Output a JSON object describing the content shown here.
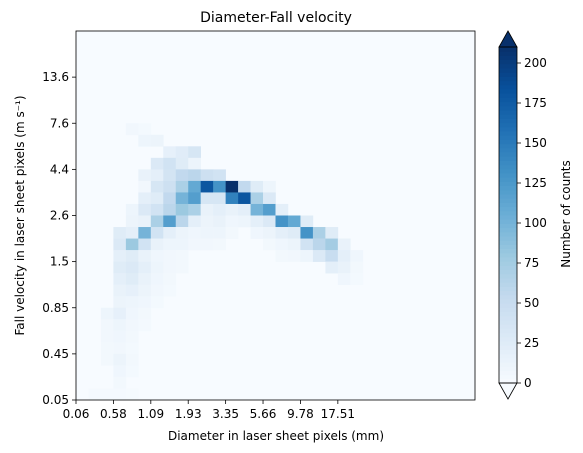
{
  "chart_data": {
    "type": "heatmap",
    "title": "Diameter-Fall velocity",
    "xlabel": "Diameter in laser sheet pixels (mm)",
    "ylabel": "Fall velocity in laser sheet pixels (m s⁻¹)",
    "colorbar_label": "Number of counts",
    "colormap": "Blues",
    "vmin": 0,
    "vmax": 210,
    "x_ticks": [
      "0.06",
      "0.58",
      "1.09",
      "1.93",
      "3.35",
      "5.66",
      "9.78",
      "17.51"
    ],
    "y_ticks": [
      "0.05",
      "0.45",
      "0.85",
      "1.5",
      "2.6",
      "4.4",
      "7.6",
      "13.6"
    ],
    "colorbar_ticks": [
      0,
      25,
      50,
      75,
      100,
      125,
      150,
      175,
      200
    ],
    "grid": false,
    "nx": 32,
    "ny": 32,
    "note_axes": "cells indexed by bin number; x tick i at bin 3*i, y tick i at bin 4*i (bottom=0)",
    "cells": [
      [
        4,
        23,
        6
      ],
      [
        5,
        23,
        4
      ],
      [
        5,
        22,
        10
      ],
      [
        6,
        22,
        12
      ],
      [
        7,
        21,
        18
      ],
      [
        8,
        21,
        24
      ],
      [
        9,
        21,
        35
      ],
      [
        6,
        20,
        30
      ],
      [
        7,
        20,
        40
      ],
      [
        8,
        20,
        25
      ],
      [
        9,
        20,
        12
      ],
      [
        5,
        19,
        15
      ],
      [
        6,
        19,
        20
      ],
      [
        7,
        19,
        38
      ],
      [
        8,
        19,
        55
      ],
      [
        9,
        19,
        60
      ],
      [
        10,
        19,
        45
      ],
      [
        11,
        19,
        40
      ],
      [
        5,
        18,
        6
      ],
      [
        6,
        18,
        35
      ],
      [
        7,
        18,
        45
      ],
      [
        8,
        18,
        70
      ],
      [
        9,
        18,
        110
      ],
      [
        10,
        18,
        180
      ],
      [
        11,
        18,
        130
      ],
      [
        12,
        18,
        210
      ],
      [
        13,
        18,
        55
      ],
      [
        14,
        18,
        25
      ],
      [
        15,
        18,
        10
      ],
      [
        5,
        17,
        20
      ],
      [
        6,
        17,
        25
      ],
      [
        7,
        17,
        55
      ],
      [
        8,
        17,
        100
      ],
      [
        9,
        17,
        120
      ],
      [
        10,
        17,
        35
      ],
      [
        11,
        17,
        35
      ],
      [
        12,
        17,
        145
      ],
      [
        13,
        17,
        180
      ],
      [
        14,
        17,
        70
      ],
      [
        15,
        17,
        30
      ],
      [
        4,
        16,
        10
      ],
      [
        5,
        16,
        30
      ],
      [
        6,
        16,
        40
      ],
      [
        7,
        16,
        60
      ],
      [
        8,
        16,
        80
      ],
      [
        9,
        16,
        70
      ],
      [
        10,
        16,
        15
      ],
      [
        11,
        16,
        20
      ],
      [
        12,
        16,
        15
      ],
      [
        13,
        16,
        20
      ],
      [
        14,
        16,
        100
      ],
      [
        15,
        16,
        120
      ],
      [
        16,
        16,
        20
      ],
      [
        4,
        15,
        12
      ],
      [
        5,
        15,
        15
      ],
      [
        6,
        15,
        70
      ],
      [
        7,
        15,
        120
      ],
      [
        8,
        15,
        60
      ],
      [
        9,
        15,
        20
      ],
      [
        10,
        15,
        12
      ],
      [
        11,
        15,
        15
      ],
      [
        12,
        15,
        8
      ],
      [
        13,
        15,
        10
      ],
      [
        14,
        15,
        20
      ],
      [
        15,
        15,
        30
      ],
      [
        16,
        15,
        130
      ],
      [
        17,
        15,
        110
      ],
      [
        18,
        15,
        25
      ],
      [
        3,
        14,
        25
      ],
      [
        4,
        14,
        20
      ],
      [
        5,
        14,
        100
      ],
      [
        6,
        14,
        40
      ],
      [
        7,
        14,
        20
      ],
      [
        8,
        14,
        12
      ],
      [
        9,
        14,
        8
      ],
      [
        10,
        14,
        10
      ],
      [
        11,
        14,
        10
      ],
      [
        12,
        14,
        5
      ],
      [
        14,
        14,
        8
      ],
      [
        15,
        14,
        12
      ],
      [
        16,
        14,
        20
      ],
      [
        17,
        14,
        25
      ],
      [
        18,
        14,
        130
      ],
      [
        19,
        14,
        70
      ],
      [
        20,
        14,
        25
      ],
      [
        3,
        13,
        30
      ],
      [
        4,
        13,
        80
      ],
      [
        5,
        13,
        40
      ],
      [
        6,
        13,
        15
      ],
      [
        7,
        13,
        10
      ],
      [
        8,
        13,
        10
      ],
      [
        9,
        13,
        6
      ],
      [
        10,
        13,
        6
      ],
      [
        11,
        13,
        5
      ],
      [
        15,
        13,
        5
      ],
      [
        16,
        13,
        8
      ],
      [
        17,
        13,
        12
      ],
      [
        18,
        13,
        40
      ],
      [
        19,
        13,
        60
      ],
      [
        20,
        13,
        75
      ],
      [
        21,
        13,
        15
      ],
      [
        3,
        12,
        20
      ],
      [
        4,
        12,
        25
      ],
      [
        5,
        12,
        15
      ],
      [
        6,
        12,
        8
      ],
      [
        7,
        12,
        6
      ],
      [
        8,
        12,
        5
      ],
      [
        16,
        12,
        5
      ],
      [
        17,
        12,
        6
      ],
      [
        18,
        12,
        10
      ],
      [
        19,
        12,
        30
      ],
      [
        20,
        12,
        50
      ],
      [
        21,
        12,
        20
      ],
      [
        22,
        12,
        8
      ],
      [
        3,
        11,
        25
      ],
      [
        4,
        11,
        30
      ],
      [
        5,
        11,
        20
      ],
      [
        6,
        11,
        10
      ],
      [
        7,
        11,
        6
      ],
      [
        8,
        11,
        5
      ],
      [
        20,
        11,
        20
      ],
      [
        21,
        11,
        15
      ],
      [
        22,
        11,
        5
      ],
      [
        3,
        10,
        20
      ],
      [
        4,
        10,
        25
      ],
      [
        5,
        10,
        15
      ],
      [
        6,
        10,
        8
      ],
      [
        7,
        10,
        5
      ],
      [
        21,
        10,
        8
      ],
      [
        22,
        10,
        4
      ],
      [
        3,
        9,
        15
      ],
      [
        4,
        9,
        18
      ],
      [
        5,
        9,
        12
      ],
      [
        6,
        9,
        6
      ],
      [
        7,
        9,
        4
      ],
      [
        3,
        8,
        12
      ],
      [
        4,
        8,
        10
      ],
      [
        5,
        8,
        8
      ],
      [
        6,
        8,
        4
      ],
      [
        2,
        7,
        10
      ],
      [
        3,
        7,
        18
      ],
      [
        4,
        7,
        8
      ],
      [
        5,
        7,
        5
      ],
      [
        2,
        6,
        6
      ],
      [
        3,
        6,
        10
      ],
      [
        4,
        6,
        6
      ],
      [
        5,
        6,
        4
      ],
      [
        2,
        5,
        6
      ],
      [
        3,
        5,
        8
      ],
      [
        4,
        5,
        5
      ],
      [
        2,
        4,
        5
      ],
      [
        3,
        4,
        6
      ],
      [
        4,
        4,
        4
      ],
      [
        2,
        3,
        5
      ],
      [
        3,
        3,
        12
      ],
      [
        4,
        3,
        5
      ],
      [
        3,
        2,
        8
      ],
      [
        4,
        2,
        4
      ],
      [
        3,
        1,
        5
      ],
      [
        1,
        0,
        3
      ],
      [
        2,
        0,
        3
      ],
      [
        3,
        0,
        3
      ],
      [
        4,
        0,
        2
      ]
    ]
  }
}
